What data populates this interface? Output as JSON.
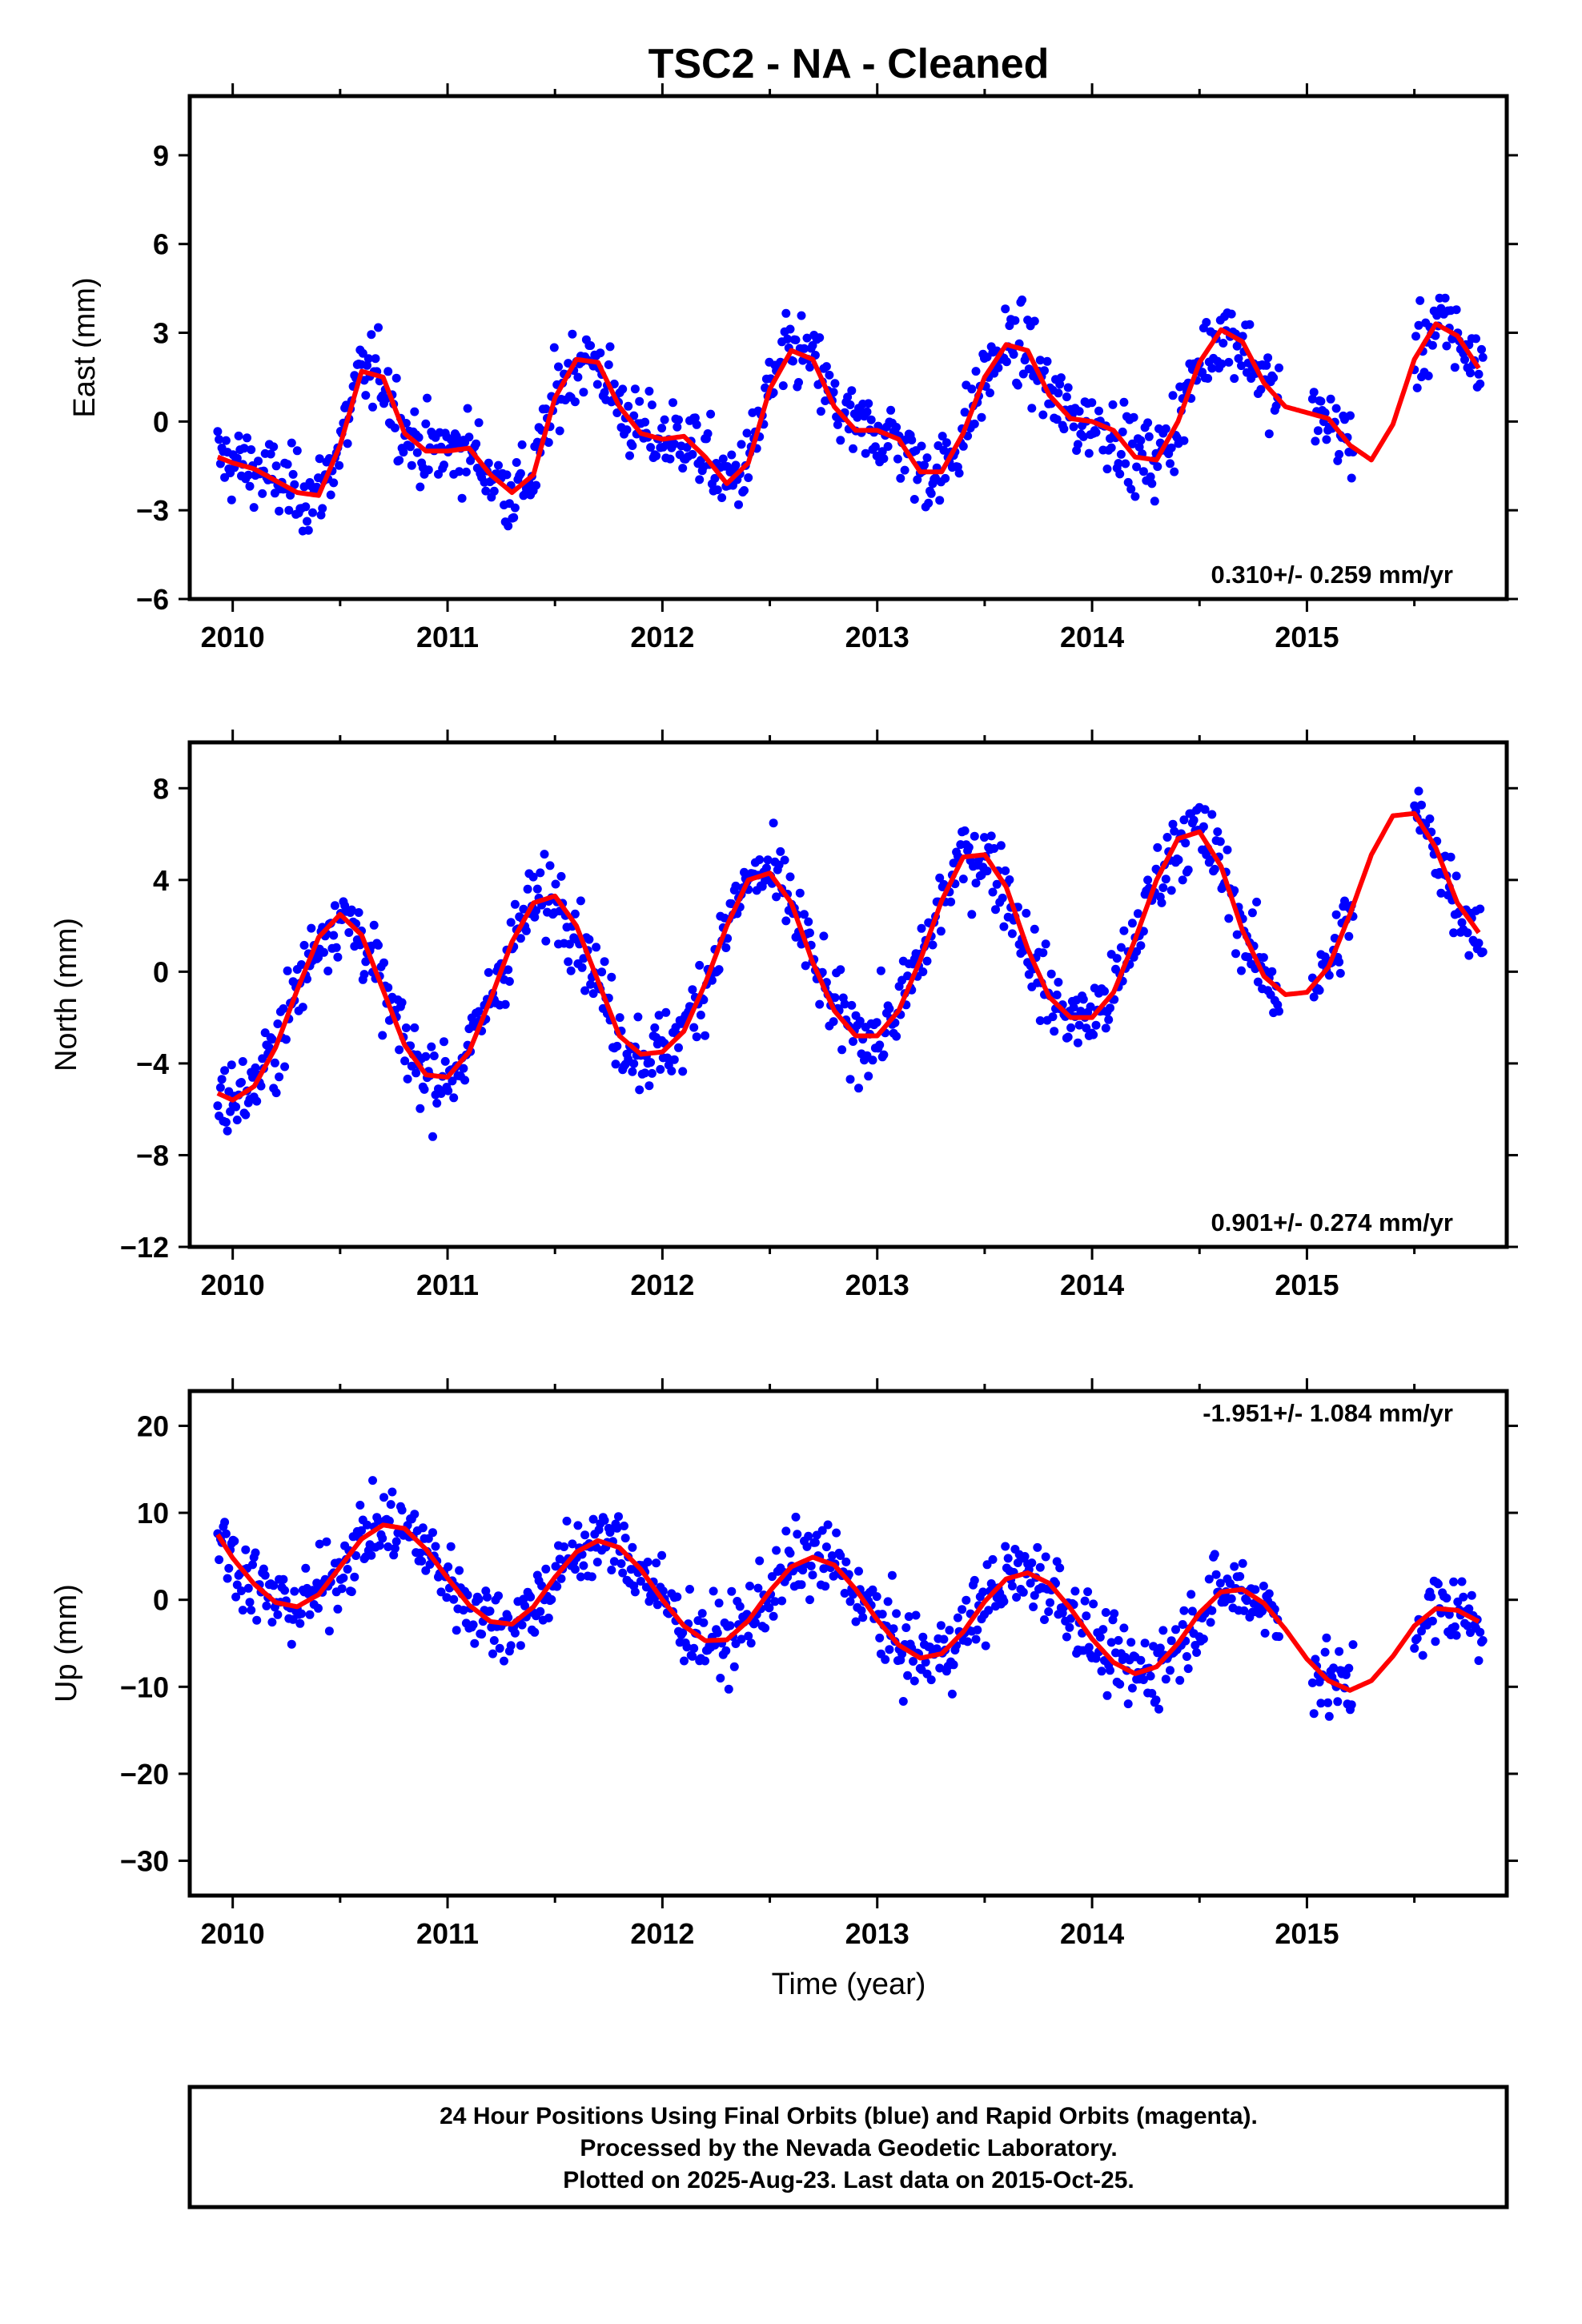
{
  "title": "TSC2  - NA - Cleaned",
  "colors": {
    "points": "#0000ff",
    "fit": "#ff0000",
    "axis": "#000000"
  },
  "chart_data": [
    {
      "type": "scatter",
      "ylabel": "East (mm)",
      "rate_label": "0.310+/- 0.259 mm/yr",
      "xlim": [
        2009.8,
        2015.93
      ],
      "ylim": [
        -6,
        11
      ],
      "yticks": [
        -6,
        -3,
        0,
        3,
        6,
        9
      ],
      "xticks": [
        2010,
        2011,
        2012,
        2013,
        2014,
        2015
      ],
      "series": [
        {
          "values": [
            [
              2009.93,
              -1.2
            ],
            [
              2010.0,
              -1.4
            ],
            [
              2010.1,
              -1.6
            ],
            [
              2010.2,
              -2.0
            ],
            [
              2010.3,
              -2.4
            ],
            [
              2010.4,
              -2.5
            ],
            [
              2010.5,
              -0.8
            ],
            [
              2010.6,
              1.7
            ],
            [
              2010.7,
              1.5
            ],
            [
              2010.8,
              -0.4
            ],
            [
              2010.9,
              -1.0
            ],
            [
              2011.0,
              -1.0
            ],
            [
              2011.1,
              -0.9
            ],
            [
              2011.2,
              -1.8
            ],
            [
              2011.3,
              -2.4
            ],
            [
              2011.4,
              -1.8
            ],
            [
              2011.5,
              0.8
            ],
            [
              2011.6,
              2.1
            ],
            [
              2011.7,
              2.0
            ],
            [
              2011.8,
              0.5
            ],
            [
              2011.9,
              -0.4
            ],
            [
              2012.0,
              -0.6
            ],
            [
              2012.1,
              -0.5
            ],
            [
              2012.2,
              -1.2
            ],
            [
              2012.3,
              -2.1
            ],
            [
              2012.4,
              -1.4
            ],
            [
              2012.5,
              1.1
            ],
            [
              2012.6,
              2.4
            ],
            [
              2012.7,
              2.1
            ],
            [
              2012.8,
              0.5
            ],
            [
              2012.9,
              -0.3
            ],
            [
              2013.0,
              -0.3
            ],
            [
              2013.1,
              -0.6
            ],
            [
              2013.2,
              -1.7
            ],
            [
              2013.3,
              -1.7
            ],
            [
              2013.4,
              -0.4
            ],
            [
              2013.5,
              1.5
            ],
            [
              2013.6,
              2.6
            ],
            [
              2013.7,
              2.4
            ],
            [
              2013.8,
              0.9
            ],
            [
              2013.9,
              0.1
            ],
            [
              2014.0,
              0.0
            ],
            [
              2014.1,
              -0.3
            ],
            [
              2014.2,
              -1.2
            ],
            [
              2014.3,
              -1.3
            ],
            [
              2014.4,
              0.0
            ],
            [
              2014.5,
              2.0
            ],
            [
              2014.6,
              3.1
            ],
            [
              2014.7,
              2.7
            ],
            [
              2014.8,
              1.3
            ],
            [
              2014.9,
              0.5
            ],
            [
              2015.0,
              0.3
            ],
            [
              2015.1,
              0.1
            ],
            [
              2015.2,
              -0.8
            ],
            [
              2015.3,
              -1.3
            ],
            [
              2015.4,
              -0.1
            ],
            [
              2015.5,
              2.1
            ],
            [
              2015.6,
              3.3
            ],
            [
              2015.7,
              2.9
            ],
            [
              2015.8,
              1.8
            ]
          ],
          "color": "#0000ff"
        }
      ]
    },
    {
      "type": "scatter",
      "ylabel": "North (mm)",
      "rate_label": "0.901+/- 0.274 mm/yr",
      "xlim": [
        2009.8,
        2015.93
      ],
      "ylim": [
        -12,
        10
      ],
      "yticks": [
        -12,
        -8,
        -4,
        0,
        4,
        8
      ],
      "xticks": [
        2010,
        2011,
        2012,
        2013,
        2014,
        2015
      ],
      "series": [
        {
          "values": [
            [
              2009.93,
              -5.3
            ],
            [
              2010.0,
              -5.6
            ],
            [
              2010.1,
              -5.0
            ],
            [
              2010.2,
              -3.3
            ],
            [
              2010.3,
              -0.8
            ],
            [
              2010.4,
              1.5
            ],
            [
              2010.5,
              2.5
            ],
            [
              2010.6,
              1.6
            ],
            [
              2010.7,
              -0.8
            ],
            [
              2010.8,
              -3.2
            ],
            [
              2010.9,
              -4.5
            ],
            [
              2011.0,
              -4.6
            ],
            [
              2011.1,
              -3.5
            ],
            [
              2011.2,
              -1.2
            ],
            [
              2011.3,
              1.3
            ],
            [
              2011.4,
              3.0
            ],
            [
              2011.5,
              3.3
            ],
            [
              2011.6,
              2.0
            ],
            [
              2011.7,
              -0.4
            ],
            [
              2011.8,
              -2.8
            ],
            [
              2011.9,
              -3.6
            ],
            [
              2012.0,
              -3.5
            ],
            [
              2012.1,
              -2.6
            ],
            [
              2012.2,
              -0.5
            ],
            [
              2012.3,
              2.0
            ],
            [
              2012.4,
              4.0
            ],
            [
              2012.5,
              4.3
            ],
            [
              2012.6,
              3.0
            ],
            [
              2012.7,
              0.4
            ],
            [
              2012.8,
              -1.7
            ],
            [
              2012.9,
              -2.8
            ],
            [
              2013.0,
              -2.8
            ],
            [
              2013.1,
              -1.7
            ],
            [
              2013.2,
              0.5
            ],
            [
              2013.3,
              3.1
            ],
            [
              2013.4,
              5.0
            ],
            [
              2013.5,
              5.1
            ],
            [
              2013.6,
              3.7
            ],
            [
              2013.7,
              1.0
            ],
            [
              2013.8,
              -1.1
            ],
            [
              2013.9,
              -2.0
            ],
            [
              2014.0,
              -2.0
            ],
            [
              2014.1,
              -0.9
            ],
            [
              2014.2,
              1.4
            ],
            [
              2014.3,
              4.0
            ],
            [
              2014.4,
              5.8
            ],
            [
              2014.5,
              6.1
            ],
            [
              2014.6,
              4.6
            ],
            [
              2014.7,
              1.8
            ],
            [
              2014.8,
              -0.2
            ],
            [
              2014.9,
              -1.0
            ],
            [
              2015.0,
              -0.9
            ],
            [
              2015.1,
              0.2
            ],
            [
              2015.2,
              2.5
            ],
            [
              2015.3,
              5.1
            ],
            [
              2015.4,
              6.8
            ],
            [
              2015.5,
              6.9
            ],
            [
              2015.6,
              5.4
            ],
            [
              2015.7,
              3.0
            ],
            [
              2015.8,
              1.7
            ]
          ],
          "color": "#0000ff"
        }
      ]
    },
    {
      "type": "scatter",
      "ylabel": "Up (mm)",
      "xlabel": "Time (year)",
      "rate_label": "-1.951+/- 1.084 mm/yr",
      "xlim": [
        2009.8,
        2015.93
      ],
      "ylim": [
        -34,
        24
      ],
      "yticks": [
        -30,
        -20,
        -10,
        0,
        10,
        20
      ],
      "xticks": [
        2010,
        2011,
        2012,
        2013,
        2014,
        2015
      ],
      "series": [
        {
          "values": [
            [
              2009.93,
              7.5
            ],
            [
              2010.0,
              4.8
            ],
            [
              2010.1,
              1.8
            ],
            [
              2010.2,
              -0.3
            ],
            [
              2010.3,
              -0.8
            ],
            [
              2010.4,
              0.6
            ],
            [
              2010.5,
              3.8
            ],
            [
              2010.6,
              7.0
            ],
            [
              2010.7,
              8.6
            ],
            [
              2010.8,
              8.2
            ],
            [
              2010.9,
              5.8
            ],
            [
              2011.0,
              2.5
            ],
            [
              2011.1,
              -0.6
            ],
            [
              2011.2,
              -2.5
            ],
            [
              2011.3,
              -2.8
            ],
            [
              2011.4,
              -0.8
            ],
            [
              2011.5,
              2.6
            ],
            [
              2011.6,
              5.5
            ],
            [
              2011.7,
              6.8
            ],
            [
              2011.8,
              6.0
            ],
            [
              2011.9,
              3.5
            ],
            [
              2012.0,
              0.0
            ],
            [
              2012.1,
              -3.0
            ],
            [
              2012.2,
              -4.7
            ],
            [
              2012.3,
              -4.6
            ],
            [
              2012.4,
              -2.4
            ],
            [
              2012.5,
              1.0
            ],
            [
              2012.6,
              3.8
            ],
            [
              2012.7,
              4.9
            ],
            [
              2012.8,
              4.0
            ],
            [
              2012.9,
              1.2
            ],
            [
              2013.0,
              -2.3
            ],
            [
              2013.1,
              -5.2
            ],
            [
              2013.2,
              -6.7
            ],
            [
              2013.3,
              -6.2
            ],
            [
              2013.4,
              -3.7
            ],
            [
              2013.5,
              -0.2
            ],
            [
              2013.6,
              2.4
            ],
            [
              2013.7,
              3.1
            ],
            [
              2013.8,
              1.9
            ],
            [
              2013.9,
              -1.0
            ],
            [
              2014.0,
              -4.5
            ],
            [
              2014.1,
              -7.2
            ],
            [
              2014.2,
              -8.5
            ],
            [
              2014.3,
              -7.7
            ],
            [
              2014.4,
              -5.0
            ],
            [
              2014.5,
              -1.5
            ],
            [
              2014.6,
              0.9
            ],
            [
              2014.7,
              1.2
            ],
            [
              2014.8,
              -0.4
            ],
            [
              2014.9,
              -3.4
            ],
            [
              2015.0,
              -6.8
            ],
            [
              2015.1,
              -9.3
            ],
            [
              2015.2,
              -10.4
            ],
            [
              2015.3,
              -9.3
            ],
            [
              2015.4,
              -6.5
            ],
            [
              2015.5,
              -3.0
            ],
            [
              2015.6,
              -1.0
            ],
            [
              2015.7,
              -1.2
            ],
            [
              2015.8,
              -2.5
            ]
          ],
          "color": "#0000ff"
        }
      ]
    }
  ],
  "footer": {
    "line1": "24 Hour Positions Using Final Orbits (blue) and Rapid Orbits (magenta).",
    "line2": "Processed by the Nevada Geodetic Laboratory.",
    "line3": "Plotted on 2025-Aug-23. Last data on 2015-Oct-25."
  }
}
